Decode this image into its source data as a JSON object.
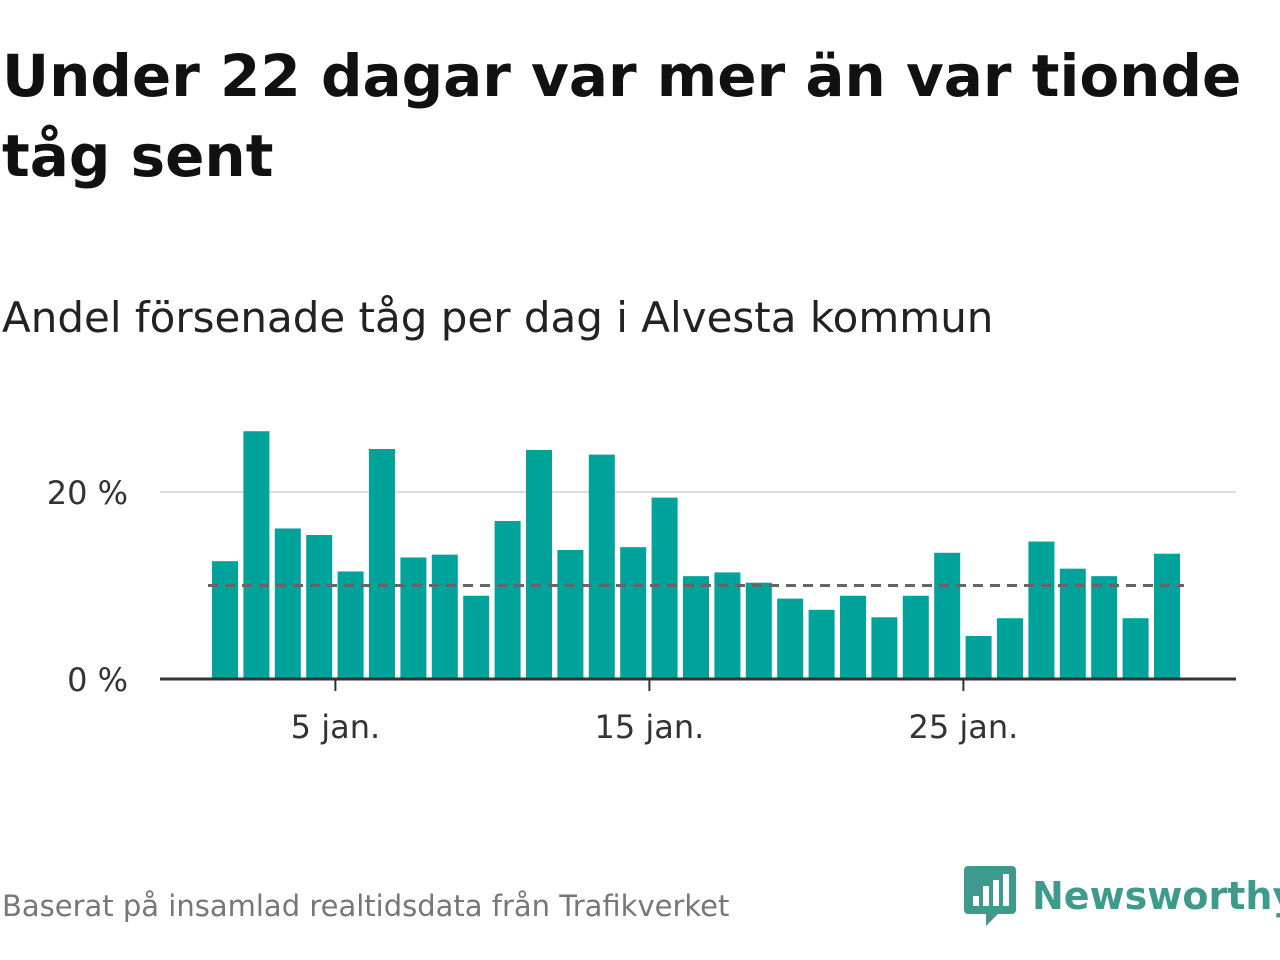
{
  "title": "Under 22 dagar var mer än var tionde tåg sent",
  "subtitle": "Andel försenade tåg per dag i Alvesta kommun",
  "source": "Baserat på insamlad realtidsdata från Trafikverket",
  "brand": {
    "name": "Newsworthy",
    "icon": "newsworthy-logo-icon"
  },
  "colors": {
    "bar": "#00a39a",
    "reference_line": "#666666",
    "grid": "#dddddd",
    "axis": "#333333",
    "brand": "#3d9a8c"
  },
  "chart_data": {
    "type": "bar",
    "x": [
      1,
      2,
      3,
      4,
      5,
      6,
      7,
      8,
      9,
      10,
      11,
      12,
      13,
      14,
      15,
      16,
      17,
      18,
      19,
      20,
      21,
      22,
      23,
      24,
      25,
      26,
      27,
      28,
      29,
      30,
      31
    ],
    "values": [
      12.6,
      26.5,
      16.1,
      15.4,
      11.5,
      24.6,
      13.0,
      13.3,
      8.9,
      16.9,
      24.5,
      13.8,
      24.0,
      14.1,
      19.4,
      11.0,
      11.4,
      10.3,
      8.6,
      7.4,
      8.9,
      6.6,
      8.9,
      13.5,
      4.6,
      6.5,
      14.7,
      11.8,
      11.0,
      6.5,
      13.4
    ],
    "reference_line": 10,
    "ylim": [
      0,
      28
    ],
    "yticks": [
      0,
      20
    ],
    "ytick_labels": [
      "0 %",
      "20 %"
    ],
    "xticks": [
      5,
      15,
      25
    ],
    "xtick_labels": [
      "5 jan.",
      "15 jan.",
      "25 jan."
    ],
    "xlabel": "",
    "ylabel": "",
    "grid": true
  }
}
